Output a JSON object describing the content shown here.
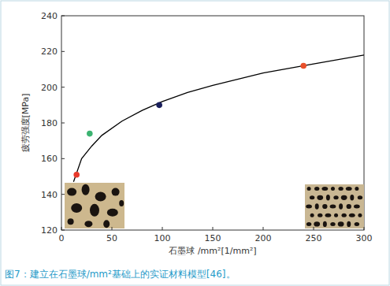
{
  "chart_data": {
    "type": "line",
    "caption": "图7：建立在石墨球/mm²基础上的实证材料模型[46]。",
    "x_label": "石墨球 /mm²[1/mm²]",
    "y_label": "疲劳强度[MPa]",
    "xlim": [
      0,
      300
    ],
    "xticks": [
      0,
      50,
      100,
      150,
      200,
      250,
      300
    ],
    "ylim": [
      120,
      240
    ],
    "yticks": [
      120,
      140,
      160,
      180,
      200,
      220,
      240
    ],
    "grid": false,
    "series": [
      {
        "type": "line",
        "color": "#000000",
        "line_style": "solid",
        "x": [
          12,
          20,
          30,
          40,
          60,
          80,
          100,
          125,
          150,
          200,
          250,
          300
        ],
        "values": [
          147,
          160,
          167,
          173,
          181,
          187,
          192,
          197,
          201,
          208,
          213,
          218
        ]
      },
      {
        "type": "scatter",
        "marker": "circle",
        "x": [
          15,
          28,
          97,
          240
        ],
        "values": [
          151,
          174,
          190,
          212
        ],
        "colors": [
          "#e8392b",
          "#3cb371",
          "#1a1f5c",
          "#e8502b"
        ]
      }
    ]
  }
}
